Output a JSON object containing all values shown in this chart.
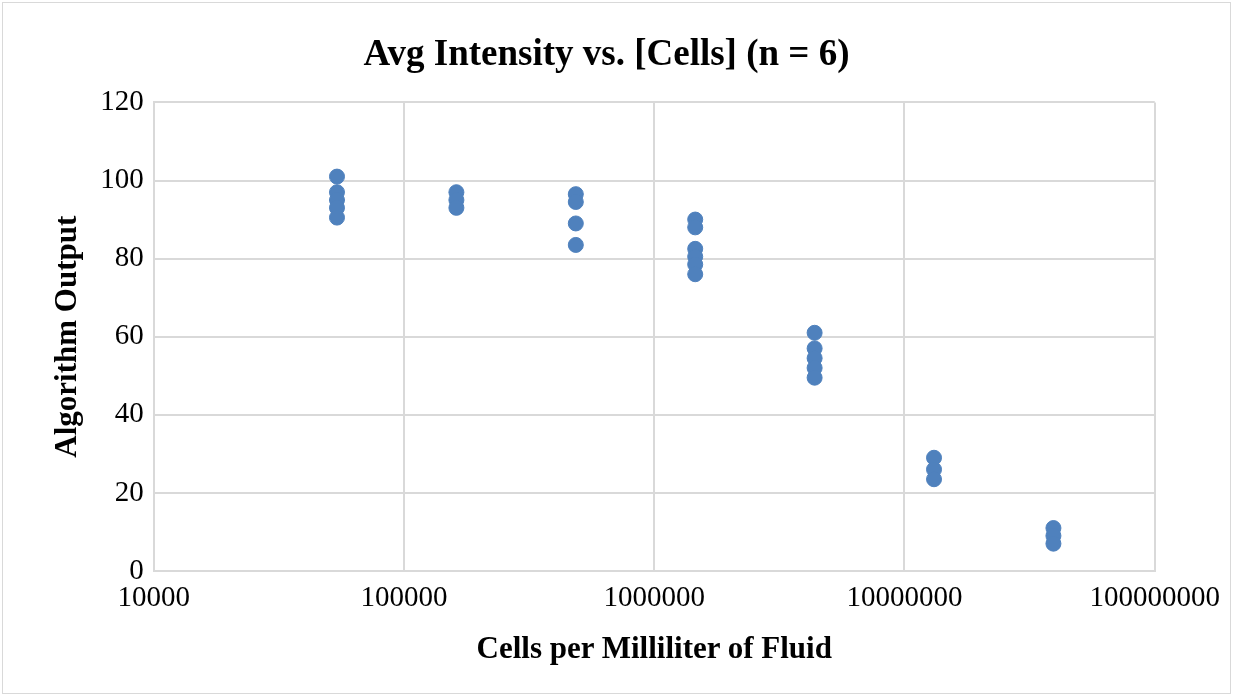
{
  "chart_data": {
    "type": "scatter",
    "title": "Avg Intensity vs. [Cells] (n = 6)",
    "xlabel": "Cells per Milliliter of Fluid",
    "ylabel": "Algorithm Output",
    "log": "x",
    "xlim": [
      10000,
      100000000
    ],
    "xticks": [
      10000,
      100000,
      1000000,
      10000000,
      100000000
    ],
    "ylim": [
      0,
      120
    ],
    "yticks": [
      0,
      20,
      40,
      60,
      80,
      100,
      120
    ],
    "grid": true,
    "legend": false,
    "marker": "circle",
    "series": [
      {
        "color": "#4f81bd",
        "x": [
          54000,
          54000,
          54000,
          54000,
          54000,
          162000,
          162000,
          162000,
          486000,
          486000,
          486000,
          486000,
          1458000,
          1458000,
          1458000,
          1458000,
          1458000,
          1458000,
          4374000,
          4374000,
          4374000,
          4374000,
          4374000,
          13122000,
          13122000,
          13122000,
          39366000,
          39366000,
          39366000
        ],
        "values": [
          101,
          97,
          95,
          93,
          90.5,
          97,
          95,
          93,
          96.5,
          94.5,
          89,
          83.5,
          90,
          88,
          82.5,
          80.5,
          78.5,
          76,
          61,
          57,
          54.5,
          52,
          49.5,
          29,
          26,
          23.5,
          11,
          9,
          7
        ]
      }
    ]
  }
}
